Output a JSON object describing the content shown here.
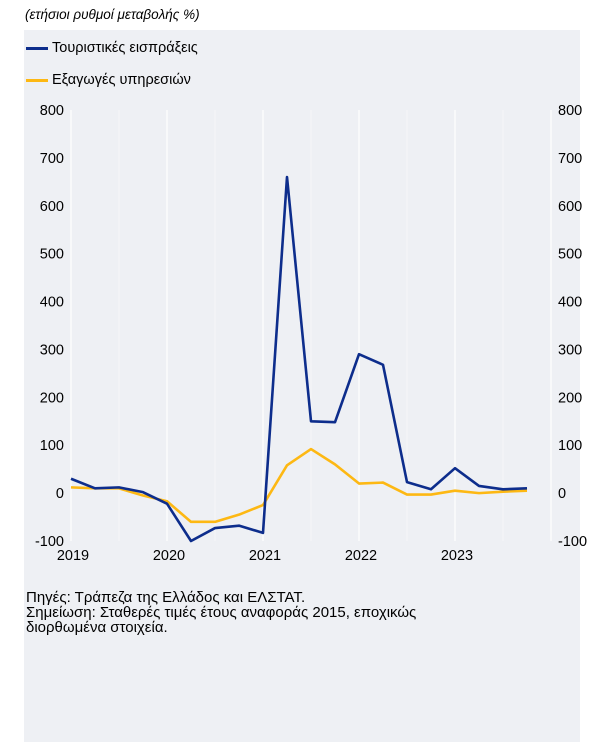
{
  "subtitle": "(ετήσιοι ρυθμοί μεταβολής %)",
  "chart_data": {
    "type": "line",
    "title": "",
    "xlabel": "",
    "ylabel": "",
    "ylim": [
      -100,
      800
    ],
    "y_ticks": [
      -100,
      0,
      100,
      200,
      300,
      400,
      500,
      600,
      700,
      800
    ],
    "x_ticks": [
      "2019",
      "2020",
      "2021",
      "2022",
      "2023"
    ],
    "x": [
      "2019Q1",
      "2019Q2",
      "2019Q3",
      "2019Q4",
      "2020Q1",
      "2020Q2",
      "2020Q3",
      "2020Q4",
      "2021Q1",
      "2021Q2",
      "2021Q3",
      "2021Q4",
      "2022Q1",
      "2022Q2",
      "2022Q3",
      "2022Q4",
      "2023Q1",
      "2023Q2",
      "2023Q3",
      "2023Q4"
    ],
    "grid": "vertical",
    "legend_position": "top-left",
    "series": [
      {
        "name": "Τουριστικές εισπράξεις",
        "color": "#0d2d8c",
        "values": [
          30,
          10,
          12,
          2,
          -22,
          -100,
          -73,
          -68,
          -83,
          660,
          150,
          148,
          290,
          268,
          23,
          8,
          52,
          15,
          8,
          10
        ]
      },
      {
        "name": "Εξαγωγές υπηρεσιών",
        "color": "#fdb813",
        "values": [
          12,
          10,
          10,
          -5,
          -17,
          -60,
          -60,
          -45,
          -25,
          58,
          92,
          60,
          20,
          22,
          -3,
          -3,
          5,
          0,
          3,
          5
        ]
      }
    ]
  },
  "notes": {
    "line1": "Πηγές: Τράπεζα της Ελλάδος και ΕΛΣΤΑΤ.",
    "line2": "Σημείωση: Σταθερές τιμές έτους αναφοράς 2015, εποχικώς\nδιορθωμένα στοιχεία."
  }
}
